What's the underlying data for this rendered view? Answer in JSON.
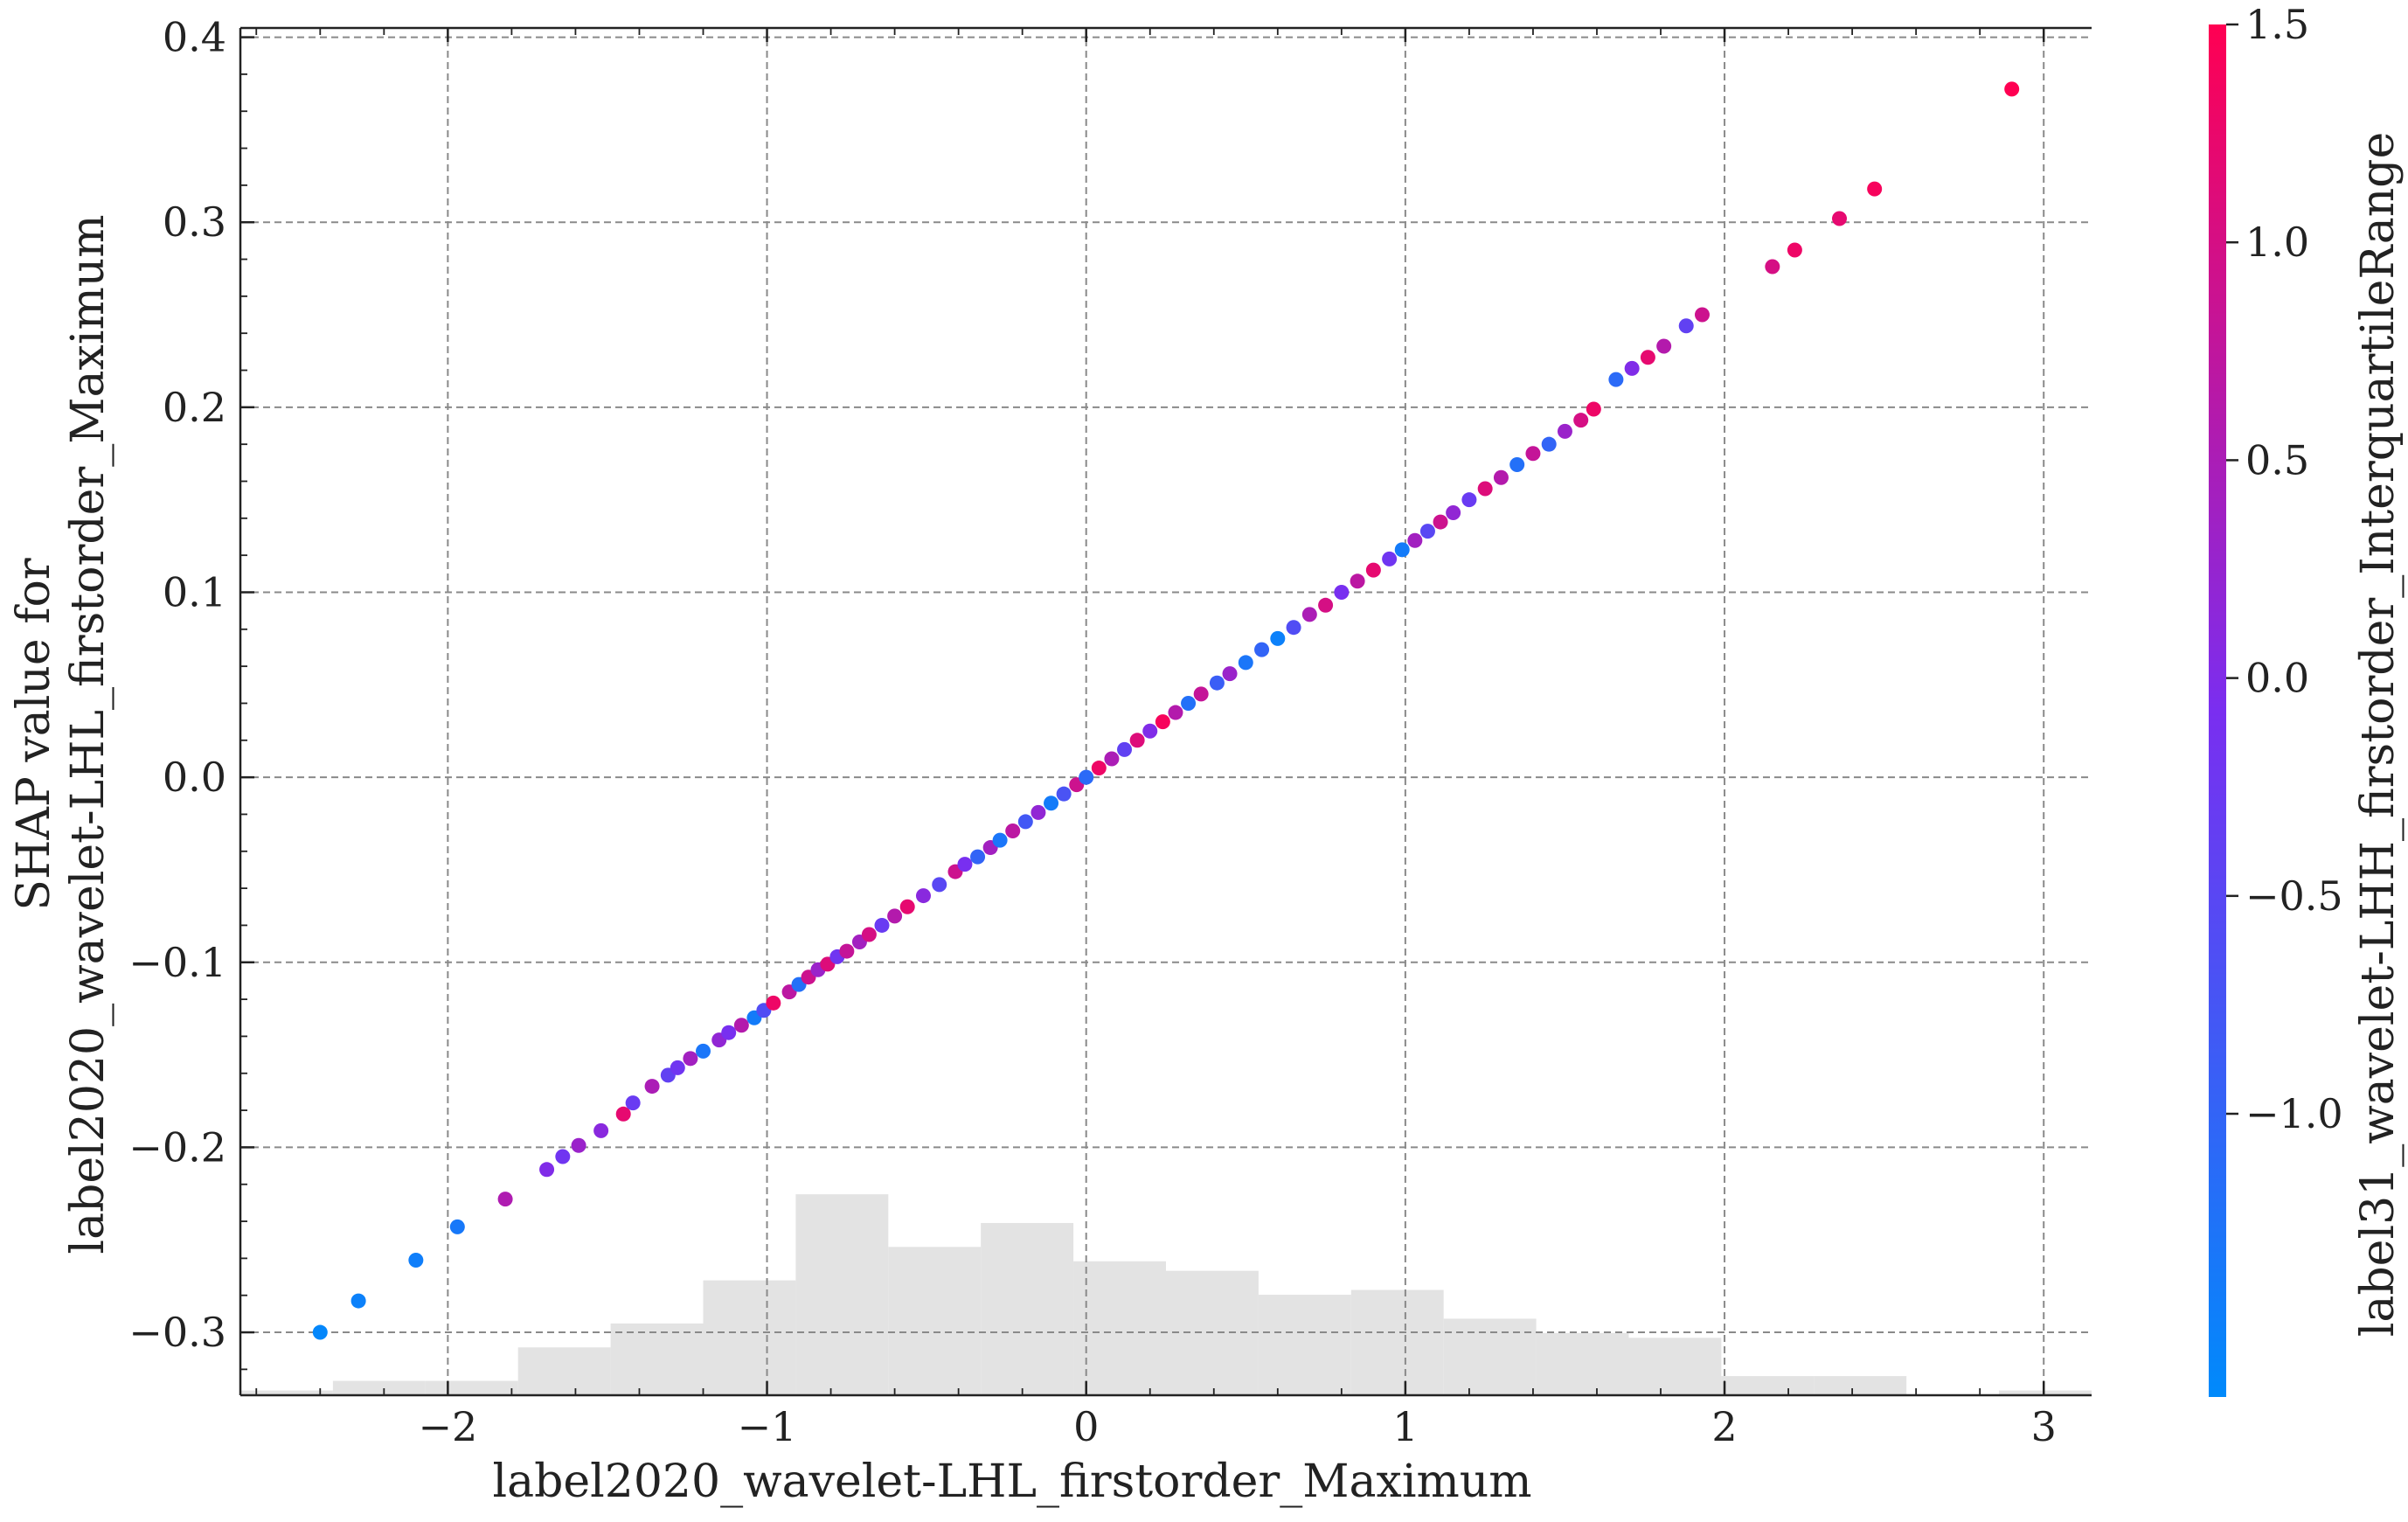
{
  "chart_data": {
    "type": "scatter",
    "title": "",
    "xlabel": "label2020_wavelet-LHL_firstorder_Maximum",
    "ylabel_lines": [
      "SHAP value for",
      "label2020_wavelet-LHL_firstorder_Maximum"
    ],
    "colorbar_label": "label31_wavelet-LHH_firstorder_InterquartileRange",
    "xlim": [
      -2.65,
      3.15
    ],
    "ylim": [
      -0.334,
      0.405
    ],
    "clim": [
      -1.65,
      1.5
    ],
    "grid": true,
    "x_ticks": [
      -2,
      -1,
      0,
      1,
      2,
      3
    ],
    "x_tick_labels": [
      "−2",
      "−1",
      "0",
      "1",
      "2",
      "3"
    ],
    "y_ticks": [
      -0.3,
      -0.2,
      -0.1,
      0.0,
      0.1,
      0.2,
      0.3,
      0.4
    ],
    "y_tick_labels": [
      "−0.3",
      "−0.2",
      "−0.1",
      "0.0",
      "0.1",
      "0.2",
      "0.3",
      "0.4"
    ],
    "colorbar_ticks": [
      -1.0,
      -0.5,
      0.0,
      0.5,
      1.0,
      1.5
    ],
    "colorbar_tick_labels": [
      "−1.0",
      "−0.5",
      "0.0",
      "0.5",
      "1.0",
      "1.5"
    ],
    "colors": {
      "low": "#008afb",
      "mid": "#7a2ef0",
      "high": "#ff0052",
      "histogram": "#e3e3e3",
      "grid": "#8a8a8a"
    },
    "histogram": {
      "bin_edges": [
        -2.65,
        -2.36,
        -2.07,
        -1.78,
        -1.49,
        -1.2,
        -0.91,
        -0.62,
        -0.33,
        -0.04,
        0.25,
        0.54,
        0.83,
        1.12,
        1.41,
        1.7,
        1.99,
        2.28,
        2.57,
        2.86,
        3.15
      ],
      "counts": [
        1,
        3,
        3,
        10,
        15,
        24,
        42,
        31,
        36,
        28,
        26,
        21,
        22,
        16,
        13,
        12,
        4,
        4,
        0,
        1
      ]
    },
    "points": [
      [
        -2.4,
        -0.3,
        -1.6
      ],
      [
        -2.28,
        -0.283,
        -1.5
      ],
      [
        -2.1,
        -0.261,
        -1.45
      ],
      [
        -1.97,
        -0.243,
        -1.35
      ],
      [
        -1.82,
        -0.228,
        0.55
      ],
      [
        -1.69,
        -0.212,
        0.0
      ],
      [
        -1.64,
        -0.205,
        -0.2
      ],
      [
        -1.59,
        -0.199,
        0.3
      ],
      [
        -1.52,
        -0.191,
        0.1
      ],
      [
        -1.45,
        -0.182,
        1.2
      ],
      [
        -1.42,
        -0.176,
        -0.3
      ],
      [
        -1.36,
        -0.167,
        0.5
      ],
      [
        -1.31,
        -0.161,
        -0.4
      ],
      [
        -1.28,
        -0.157,
        -0.2
      ],
      [
        -1.24,
        -0.152,
        0.4
      ],
      [
        -1.2,
        -0.148,
        -1.3
      ],
      [
        -1.15,
        -0.142,
        0.2
      ],
      [
        -1.12,
        -0.138,
        -0.1
      ],
      [
        -1.08,
        -0.134,
        0.6
      ],
      [
        -1.04,
        -0.13,
        -1.4
      ],
      [
        -1.01,
        -0.126,
        -0.6
      ],
      [
        -0.98,
        -0.122,
        1.3
      ],
      [
        -0.93,
        -0.116,
        0.7
      ],
      [
        -0.9,
        -0.112,
        -1.2
      ],
      [
        -0.87,
        -0.108,
        0.9
      ],
      [
        -0.84,
        -0.104,
        0.3
      ],
      [
        -0.81,
        -0.101,
        1.1
      ],
      [
        -0.78,
        -0.097,
        -0.2
      ],
      [
        -0.75,
        -0.094,
        0.8
      ],
      [
        -0.71,
        -0.089,
        0.4
      ],
      [
        -0.68,
        -0.085,
        1.0
      ],
      [
        -0.64,
        -0.08,
        -0.3
      ],
      [
        -0.6,
        -0.075,
        0.6
      ],
      [
        -0.56,
        -0.07,
        1.2
      ],
      [
        -0.51,
        -0.064,
        0.1
      ],
      [
        -0.46,
        -0.058,
        -0.5
      ],
      [
        -0.41,
        -0.051,
        0.9
      ],
      [
        -0.38,
        -0.047,
        -0.1
      ],
      [
        -0.34,
        -0.043,
        -1.0
      ],
      [
        -0.3,
        -0.038,
        0.4
      ],
      [
        -0.27,
        -0.034,
        -1.3
      ],
      [
        -0.23,
        -0.029,
        0.7
      ],
      [
        -0.19,
        -0.024,
        -0.8
      ],
      [
        -0.15,
        -0.019,
        0.2
      ],
      [
        -0.11,
        -0.014,
        -1.4
      ],
      [
        -0.07,
        -0.009,
        -0.7
      ],
      [
        -0.03,
        -0.004,
        0.9
      ],
      [
        0.0,
        0.0,
        -1.1
      ],
      [
        0.04,
        0.005,
        1.3
      ],
      [
        0.08,
        0.01,
        0.5
      ],
      [
        0.12,
        0.015,
        -0.4
      ],
      [
        0.16,
        0.02,
        1.1
      ],
      [
        0.2,
        0.025,
        0.0
      ],
      [
        0.24,
        0.03,
        1.4
      ],
      [
        0.28,
        0.035,
        0.6
      ],
      [
        0.32,
        0.04,
        -1.2
      ],
      [
        0.36,
        0.045,
        0.8
      ],
      [
        0.41,
        0.051,
        -0.9
      ],
      [
        0.45,
        0.056,
        0.3
      ],
      [
        0.5,
        0.062,
        -1.3
      ],
      [
        0.55,
        0.069,
        -1.0
      ],
      [
        0.6,
        0.075,
        -1.5
      ],
      [
        0.65,
        0.081,
        -0.6
      ],
      [
        0.7,
        0.088,
        0.5
      ],
      [
        0.75,
        0.093,
        1.0
      ],
      [
        0.8,
        0.1,
        -0.1
      ],
      [
        0.85,
        0.106,
        0.7
      ],
      [
        0.9,
        0.112,
        1.2
      ],
      [
        0.95,
        0.118,
        -0.2
      ],
      [
        0.99,
        0.123,
        -1.4
      ],
      [
        1.03,
        0.128,
        0.4
      ],
      [
        1.07,
        0.133,
        -0.5
      ],
      [
        1.11,
        0.138,
        0.9
      ],
      [
        1.15,
        0.143,
        0.2
      ],
      [
        1.2,
        0.15,
        -0.3
      ],
      [
        1.25,
        0.156,
        1.1
      ],
      [
        1.3,
        0.162,
        0.6
      ],
      [
        1.35,
        0.169,
        -1.2
      ],
      [
        1.4,
        0.175,
        0.8
      ],
      [
        1.45,
        0.18,
        -1.0
      ],
      [
        1.5,
        0.187,
        0.3
      ],
      [
        1.55,
        0.193,
        1.0
      ],
      [
        1.59,
        0.199,
        1.3
      ],
      [
        1.66,
        0.215,
        -1.1
      ],
      [
        1.71,
        0.221,
        0.0
      ],
      [
        1.76,
        0.227,
        1.2
      ],
      [
        1.81,
        0.233,
        0.6
      ],
      [
        1.88,
        0.244,
        -0.4
      ],
      [
        1.93,
        0.25,
        0.9
      ],
      [
        2.15,
        0.276,
        1.0
      ],
      [
        2.22,
        0.285,
        1.3
      ],
      [
        2.36,
        0.302,
        1.2
      ],
      [
        2.47,
        0.318,
        1.4
      ],
      [
        2.9,
        0.372,
        1.5
      ]
    ]
  }
}
